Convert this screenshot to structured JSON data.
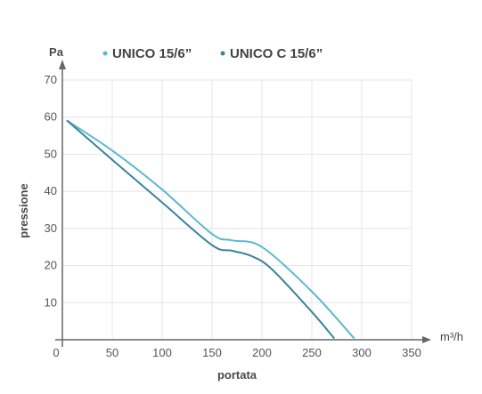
{
  "chart_data": {
    "type": "line",
    "ylabel_top": "Pa",
    "ylabel": "pressione",
    "xlabel": "portata",
    "xunit": "m³/h",
    "xlim": [
      0,
      350
    ],
    "ylim": [
      0,
      70
    ],
    "xticks": [
      0,
      50,
      100,
      150,
      200,
      250,
      300,
      350
    ],
    "yticks": [
      10,
      20,
      30,
      40,
      50,
      60,
      70
    ],
    "grid": true,
    "legend_position": "top",
    "series": [
      {
        "name": "UNICO 15/6”",
        "color": "#5cb9cc",
        "x": [
          5,
          50,
          100,
          150,
          170,
          200,
          250,
          292
        ],
        "y": [
          59,
          51,
          40.5,
          28.5,
          26.8,
          25,
          13,
          0.5
        ]
      },
      {
        "name": "UNICO C 15/6”",
        "color": "#3a8499",
        "x": [
          5,
          50,
          100,
          150,
          170,
          190,
          210,
          250,
          272
        ],
        "y": [
          59,
          48.5,
          37,
          25.5,
          24,
          22.5,
          19,
          7.5,
          0.5
        ]
      }
    ]
  }
}
